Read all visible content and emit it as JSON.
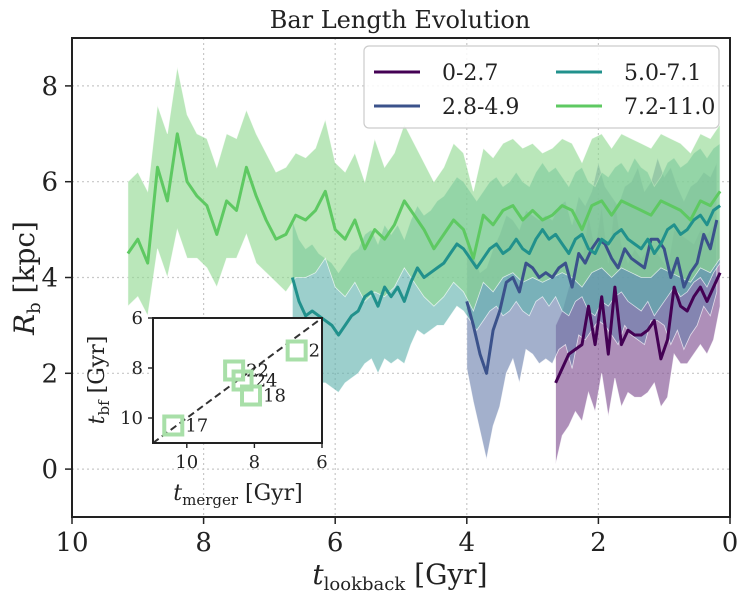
{
  "chart_data": {
    "type": "line",
    "title": "Bar Length Evolution",
    "xlabel": "t_lookback [Gyr]",
    "ylabel": "R_b [kpc]",
    "xlim": [
      10,
      0
    ],
    "ylim": [
      -1,
      9
    ],
    "xticks": [
      "10",
      "8",
      "6",
      "4",
      "2",
      "0"
    ],
    "xtick_values": [
      10,
      8,
      6,
      4,
      2,
      0
    ],
    "yticks": [
      "0",
      "2",
      "4",
      "6",
      "8"
    ],
    "ytick_values": [
      0,
      2,
      4,
      6,
      8
    ],
    "grid": true,
    "legend_placement": "top-right",
    "series": [
      {
        "name": "0-2.7",
        "color": "#440154",
        "fill": "#7d4a8e",
        "x": [
          2.65,
          2.55,
          2.45,
          2.35,
          2.25,
          2.15,
          2.05,
          1.95,
          1.85,
          1.75,
          1.65,
          1.55,
          1.45,
          1.35,
          1.25,
          1.15,
          1.05,
          0.95,
          0.85,
          0.75,
          0.65,
          0.55,
          0.45,
          0.35,
          0.25,
          0.15
        ],
        "y": [
          1.8,
          2.1,
          2.4,
          2.5,
          2.6,
          3.4,
          2.6,
          3.6,
          2.4,
          3.8,
          2.6,
          2.9,
          2.8,
          2.8,
          2.9,
          3.1,
          2.3,
          2.7,
          3.8,
          3.4,
          3.3,
          3.6,
          3.8,
          3.5,
          3.8,
          4.1
        ],
        "lower": [
          0.1,
          0.7,
          0.9,
          1.2,
          1.0,
          1.6,
          1.2,
          2.0,
          1.1,
          1.9,
          1.3,
          1.6,
          1.5,
          1.5,
          1.6,
          1.8,
          1.3,
          1.5,
          2.4,
          2.2,
          2.2,
          2.4,
          2.6,
          2.4,
          2.7,
          3.4
        ],
        "upper": [
          3.0,
          3.3,
          3.8,
          4.1,
          4.3,
          5.3,
          4.6,
          5.5,
          4.3,
          5.6,
          4.7,
          4.3,
          4.6,
          4.4,
          4.6,
          4.6,
          4.4,
          4.2,
          5.0,
          4.9,
          4.8,
          4.7,
          5.0,
          4.9,
          5.1,
          5.2
        ]
      },
      {
        "name": "2.8-4.9",
        "color": "#3b528b",
        "fill": "#6b7fad",
        "x": [
          4.0,
          3.9,
          3.8,
          3.7,
          3.6,
          3.5,
          3.4,
          3.3,
          3.2,
          3.1,
          3.0,
          2.9,
          2.8,
          2.7,
          2.6,
          2.5,
          2.4,
          2.3,
          2.2,
          2.1,
          2.0,
          1.9,
          1.8,
          1.7,
          1.6,
          1.5,
          1.4,
          1.3,
          1.2,
          1.1,
          1.0,
          0.9,
          0.8,
          0.7,
          0.6,
          0.5,
          0.4,
          0.3,
          0.2
        ],
        "y": [
          3.5,
          3.0,
          2.4,
          2.0,
          2.9,
          3.3,
          3.9,
          4.0,
          3.7,
          4.3,
          4.2,
          4.0,
          4.1,
          4.0,
          4.2,
          4.3,
          3.8,
          4.5,
          4.3,
          4.6,
          4.8,
          4.7,
          4.4,
          4.2,
          4.6,
          4.4,
          4.3,
          4.2,
          4.8,
          4.8,
          4.6,
          4.0,
          4.4,
          3.8,
          4.1,
          4.3,
          4.9,
          4.6,
          5.2
        ],
        "lower": [
          2.1,
          1.4,
          0.8,
          0.2,
          0.9,
          1.3,
          2.0,
          2.3,
          1.8,
          2.5,
          2.4,
          2.2,
          2.3,
          2.2,
          2.5,
          2.6,
          2.1,
          2.8,
          2.7,
          2.9,
          3.1,
          3.0,
          2.8,
          2.6,
          3.0,
          2.8,
          2.7,
          2.6,
          3.1,
          3.1,
          3.0,
          2.6,
          2.9,
          2.5,
          2.8,
          3.0,
          3.4,
          3.2,
          3.7
        ],
        "upper": [
          4.7,
          4.5,
          4.1,
          4.2,
          4.6,
          4.9,
          5.3,
          5.2,
          5.0,
          5.4,
          5.3,
          5.2,
          5.3,
          5.2,
          5.5,
          5.6,
          5.1,
          5.7,
          5.5,
          5.8,
          6.4,
          5.9,
          5.7,
          5.5,
          5.9,
          6.0,
          6.3,
          5.8,
          6.0,
          6.5,
          6.1,
          6.3,
          5.9,
          5.6,
          5.9,
          6.0,
          6.2,
          6.1,
          6.4
        ]
      },
      {
        "name": "5.0-7.1",
        "color": "#21918c",
        "fill": "#5fb2ad",
        "x": [
          6.65,
          6.55,
          6.45,
          6.35,
          6.25,
          6.15,
          6.05,
          5.95,
          5.85,
          5.75,
          5.65,
          5.55,
          5.45,
          5.35,
          5.25,
          5.15,
          5.05,
          4.95,
          4.85,
          4.75,
          4.65,
          4.55,
          4.45,
          4.35,
          4.25,
          4.15,
          4.05,
          3.95,
          3.85,
          3.75,
          3.65,
          3.55,
          3.45,
          3.35,
          3.25,
          3.15,
          3.05,
          2.95,
          2.85,
          2.75,
          2.65,
          2.55,
          2.45,
          2.35,
          2.25,
          2.15,
          2.05,
          1.95,
          1.85,
          1.75,
          1.65,
          1.55,
          1.45,
          1.35,
          1.25,
          1.15,
          1.05,
          0.95,
          0.85,
          0.75,
          0.65,
          0.55,
          0.45,
          0.35,
          0.25,
          0.15
        ],
        "y": [
          4.0,
          3.5,
          3.2,
          3.3,
          3.2,
          3.1,
          3.0,
          2.8,
          3.0,
          3.2,
          3.3,
          3.6,
          3.7,
          3.4,
          3.8,
          3.6,
          3.8,
          3.5,
          3.9,
          4.2,
          4.0,
          4.1,
          4.2,
          4.3,
          4.5,
          4.7,
          4.6,
          4.4,
          4.2,
          4.4,
          4.6,
          4.7,
          4.5,
          4.6,
          4.8,
          4.6,
          4.5,
          4.8,
          5.0,
          4.8,
          4.9,
          4.7,
          4.5,
          4.8,
          4.9,
          4.6,
          4.5,
          4.8,
          4.7,
          4.9,
          5.0,
          4.8,
          4.7,
          4.6,
          4.8,
          4.5,
          4.7,
          5.0,
          5.1,
          4.9,
          5.0,
          5.2,
          5.3,
          5.1,
          5.4,
          5.5
        ],
        "lower": [
          2.9,
          2.3,
          1.8,
          2.0,
          1.8,
          1.8,
          1.7,
          1.6,
          1.8,
          1.9,
          2.0,
          2.2,
          2.3,
          2.0,
          2.3,
          2.2,
          2.3,
          2.2,
          2.6,
          2.9,
          2.8,
          2.9,
          3.0,
          3.0,
          3.2,
          3.4,
          3.3,
          3.1,
          2.9,
          3.1,
          3.3,
          3.4,
          3.2,
          3.3,
          3.5,
          3.3,
          3.2,
          3.5,
          3.6,
          3.4,
          3.6,
          3.3,
          3.2,
          3.5,
          3.6,
          3.3,
          3.2,
          3.5,
          3.4,
          3.6,
          3.7,
          3.5,
          3.4,
          3.3,
          3.5,
          3.2,
          3.4,
          3.6,
          3.8,
          3.6,
          3.7,
          3.9,
          4.0,
          3.8,
          4.1,
          4.3
        ],
        "upper": [
          5.2,
          4.8,
          4.6,
          4.7,
          4.5,
          4.4,
          4.3,
          4.1,
          4.3,
          4.5,
          4.6,
          4.9,
          5.0,
          4.7,
          5.1,
          4.9,
          5.1,
          4.8,
          5.2,
          5.5,
          5.3,
          5.4,
          5.6,
          5.7,
          5.9,
          6.1,
          6.0,
          5.8,
          5.6,
          5.8,
          6.0,
          6.1,
          5.9,
          6.0,
          6.2,
          6.0,
          5.9,
          6.2,
          6.4,
          6.2,
          6.3,
          6.1,
          5.9,
          6.2,
          6.3,
          6.0,
          5.9,
          6.2,
          6.1,
          6.3,
          6.4,
          6.2,
          6.5,
          6.3,
          6.2,
          5.9,
          6.1,
          6.4,
          6.5,
          6.3,
          6.4,
          6.6,
          6.7,
          6.5,
          6.7,
          6.8
        ]
      },
      {
        "name": "7.2-11.0",
        "color": "#5ec962",
        "fill": "#8fd98f",
        "x": [
          9.15,
          9.0,
          8.85,
          8.7,
          8.55,
          8.4,
          8.25,
          8.1,
          7.95,
          7.8,
          7.65,
          7.5,
          7.35,
          7.2,
          7.05,
          6.9,
          6.75,
          6.6,
          6.45,
          6.3,
          6.15,
          6.0,
          5.85,
          5.7,
          5.55,
          5.4,
          5.25,
          5.1,
          4.95,
          4.8,
          4.65,
          4.5,
          4.35,
          4.2,
          4.05,
          3.9,
          3.75,
          3.6,
          3.45,
          3.3,
          3.15,
          3.0,
          2.85,
          2.7,
          2.55,
          2.4,
          2.25,
          2.1,
          1.95,
          1.8,
          1.65,
          1.5,
          1.35,
          1.2,
          1.05,
          0.9,
          0.75,
          0.6,
          0.45,
          0.3,
          0.15
        ],
        "y": [
          4.5,
          4.8,
          4.3,
          6.3,
          5.6,
          7.0,
          6.0,
          5.7,
          5.5,
          4.9,
          5.6,
          5.4,
          6.3,
          5.7,
          5.2,
          4.8,
          4.9,
          5.3,
          5.2,
          5.4,
          5.8,
          5.0,
          4.8,
          5.2,
          4.6,
          5.0,
          4.8,
          5.1,
          5.6,
          5.3,
          5.0,
          4.6,
          4.9,
          5.2,
          5.0,
          4.4,
          5.3,
          5.1,
          5.4,
          5.5,
          5.2,
          5.4,
          5.2,
          5.3,
          5.5,
          5.4,
          5.0,
          5.5,
          5.6,
          5.3,
          5.6,
          5.5,
          5.4,
          5.3,
          5.6,
          5.5,
          5.4,
          5.2,
          5.6,
          5.5,
          5.8
        ],
        "lower": [
          3.4,
          3.6,
          3.2,
          4.6,
          4.0,
          5.0,
          4.4,
          4.4,
          4.2,
          3.8,
          4.4,
          4.4,
          4.9,
          4.3,
          4.1,
          3.9,
          3.7,
          4.0,
          4.0,
          4.1,
          4.4,
          3.8,
          3.6,
          3.9,
          3.5,
          3.7,
          3.6,
          3.8,
          4.2,
          3.9,
          3.6,
          3.4,
          3.6,
          3.9,
          3.7,
          3.3,
          3.9,
          3.7,
          4.0,
          4.1,
          3.9,
          4.0,
          3.9,
          4.0,
          4.1,
          4.0,
          3.8,
          4.1,
          4.2,
          4.0,
          4.2,
          4.1,
          4.0,
          4.0,
          4.2,
          4.1,
          4.0,
          3.9,
          4.2,
          4.1,
          4.4
        ],
        "upper": [
          6.0,
          6.2,
          5.8,
          7.6,
          7.0,
          8.4,
          7.4,
          7.0,
          6.9,
          6.3,
          7.0,
          6.9,
          7.5,
          7.0,
          6.6,
          6.2,
          6.3,
          6.6,
          6.5,
          6.7,
          7.3,
          6.4,
          6.2,
          6.6,
          6.0,
          6.9,
          6.3,
          6.6,
          7.2,
          6.8,
          6.4,
          6.0,
          6.3,
          6.8,
          6.6,
          5.8,
          6.7,
          6.5,
          6.8,
          6.9,
          6.7,
          6.8,
          6.6,
          6.7,
          6.9,
          6.8,
          6.4,
          6.9,
          7.0,
          6.7,
          7.0,
          6.9,
          6.8,
          6.7,
          7.0,
          6.9,
          6.8,
          6.6,
          7.0,
          6.9,
          7.2
        ]
      }
    ],
    "inset": {
      "xlabel": "t_merger [Gyr]",
      "ylabel": "t_bf [Gyr]",
      "xlim": [
        11.0,
        6.0
      ],
      "ylim": [
        11.0,
        6.0
      ],
      "xticks": [
        "10",
        "8",
        "6"
      ],
      "xtick_values": [
        10,
        8,
        6
      ],
      "yticks": [
        "6",
        "8",
        "10"
      ],
      "ytick_values": [
        6,
        8,
        10
      ],
      "diagonal": "dashed y = x",
      "marker_color": "#a8dfa8",
      "points": [
        {
          "label": "2",
          "x": 6.75,
          "y": 7.3
        },
        {
          "label": "22",
          "x": 8.6,
          "y": 8.1
        },
        {
          "label": "24",
          "x": 8.35,
          "y": 8.5
        },
        {
          "label": "18",
          "x": 8.1,
          "y": 9.1
        },
        {
          "label": "17",
          "x": 10.4,
          "y": 10.3
        }
      ]
    }
  }
}
